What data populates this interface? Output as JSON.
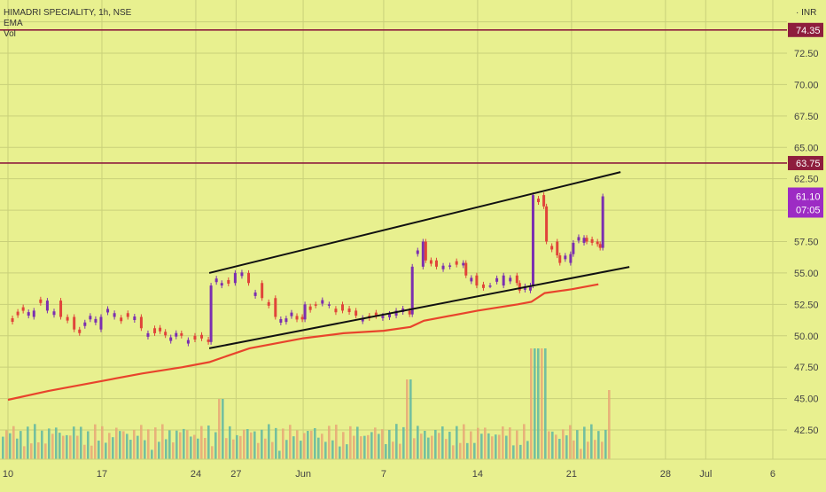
{
  "legend": {
    "symbol": "HIMADRI SPECIALITY, 1h, NSE",
    "ema": "EMA",
    "vol": "Vol"
  },
  "currency": "INR",
  "colors": {
    "background": "#e8f08f",
    "grid": "#c9d07a",
    "up": "#7b2fb0",
    "down": "#e0443a",
    "ema": "#e8442c",
    "hline": "#8e1d3d",
    "channel": "#111111",
    "vol_up": "#5fb7a2",
    "vol_down": "#e8a777",
    "last_price_bg": "#9d2bc4"
  },
  "chart_data": {
    "type": "candlestick",
    "y_axis": {
      "ylim": [
        40.0,
        76.0
      ],
      "tick_labels": [
        "72.50",
        "70.00",
        "67.50",
        "65.00",
        "62.50",
        "57.50",
        "55.00",
        "52.50",
        "50.00",
        "47.50",
        "45.00",
        "42.50"
      ]
    },
    "x_axis": {
      "tick_labels": [
        "10",
        "17",
        "24",
        "27",
        "Jun",
        "7",
        "14",
        "21",
        "28",
        "Jul",
        "6"
      ]
    },
    "horizontal_lines": [
      {
        "value": 74.35,
        "label": "74.35"
      },
      {
        "value": 63.75,
        "label": "63.75"
      }
    ],
    "last_price": {
      "value": 61.1,
      "label": "61.10",
      "countdown": "07:05"
    },
    "channel": {
      "upper": [
        {
          "x": "May 25",
          "y": 55.0
        },
        {
          "x": "Jun 23",
          "y": 62.6
        }
      ],
      "lower": [
        {
          "x": "May 25",
          "y": 49.0
        },
        {
          "x": "Jun 23",
          "y": 55.0
        }
      ]
    },
    "price_path": [
      {
        "x": "May 10",
        "y": 51.5
      },
      {
        "x": "May 12",
        "y": 52.0
      },
      {
        "x": "May 13",
        "y": 52.8
      },
      {
        "x": "May 14",
        "y": 51.5
      },
      {
        "x": "May 15",
        "y": 50.5
      },
      {
        "x": "May 17",
        "y": 51.5
      },
      {
        "x": "May 18",
        "y": 51.8
      },
      {
        "x": "May 19",
        "y": 51.5
      },
      {
        "x": "May 20",
        "y": 50.6
      },
      {
        "x": "May 21",
        "y": 50.2
      },
      {
        "x": "May 23",
        "y": 50.0
      },
      {
        "x": "May 24",
        "y": 49.7
      },
      {
        "x": "May 25",
        "y": 49.5
      },
      {
        "x": "May 25",
        "y": 54.0
      },
      {
        "x": "May 26",
        "y": 54.2
      },
      {
        "x": "May 27",
        "y": 55.0
      },
      {
        "x": "May 28",
        "y": 54.2
      },
      {
        "x": "May 29",
        "y": 53.0
      },
      {
        "x": "May 30",
        "y": 51.5
      },
      {
        "x": "Jun 1",
        "y": 51.3
      },
      {
        "x": "Jun 1",
        "y": 52.5
      },
      {
        "x": "Jun 2",
        "y": 52.4
      },
      {
        "x": "Jun 3",
        "y": 52.5
      },
      {
        "x": "Jun 4",
        "y": 52.0
      },
      {
        "x": "Jun 5",
        "y": 51.6
      },
      {
        "x": "Jun 6",
        "y": 51.4
      },
      {
        "x": "Jun 7",
        "y": 51.6
      },
      {
        "x": "Jun 8",
        "y": 52.0
      },
      {
        "x": "Jun 9",
        "y": 51.7
      },
      {
        "x": "Jun 9",
        "y": 55.5
      },
      {
        "x": "Jun 10",
        "y": 57.5
      },
      {
        "x": "Jun 10",
        "y": 56.0
      },
      {
        "x": "Jun 11",
        "y": 55.5
      },
      {
        "x": "Jun 12",
        "y": 55.6
      },
      {
        "x": "Jun 13",
        "y": 55.8
      },
      {
        "x": "Jun 13",
        "y": 54.8
      },
      {
        "x": "Jun 14",
        "y": 54.0
      },
      {
        "x": "Jun 15",
        "y": 54.0
      },
      {
        "x": "Jun 16",
        "y": 54.8
      },
      {
        "x": "Jun 17",
        "y": 54.2
      },
      {
        "x": "Jun 17",
        "y": 53.6
      },
      {
        "x": "Jun 18",
        "y": 54.0
      },
      {
        "x": "Jun 18",
        "y": 61.2
      },
      {
        "x": "Jun 19",
        "y": 60.3
      },
      {
        "x": "Jun 19",
        "y": 57.5
      },
      {
        "x": "Jun 20",
        "y": 56.4
      },
      {
        "x": "Jun 20",
        "y": 55.8
      },
      {
        "x": "Jun 21",
        "y": 56.5
      },
      {
        "x": "Jun 21",
        "y": 57.4
      },
      {
        "x": "Jun 22",
        "y": 57.8
      },
      {
        "x": "Jun 22",
        "y": 57.5
      },
      {
        "x": "Jun 23",
        "y": 57.3
      },
      {
        "x": "Jun 23",
        "y": 57.0
      },
      {
        "x": "Jun 23",
        "y": 61.1
      }
    ],
    "ema_path": [
      {
        "x": "May 10",
        "y": 44.9
      },
      {
        "x": "May 13",
        "y": 45.6
      },
      {
        "x": "May 17",
        "y": 46.4
      },
      {
        "x": "May 20",
        "y": 47.0
      },
      {
        "x": "May 23",
        "y": 47.5
      },
      {
        "x": "May 25",
        "y": 47.9
      },
      {
        "x": "May 28",
        "y": 49.0
      },
      {
        "x": "Jun 1",
        "y": 49.8
      },
      {
        "x": "Jun 4",
        "y": 50.2
      },
      {
        "x": "Jun 7",
        "y": 50.4
      },
      {
        "x": "Jun 9",
        "y": 50.7
      },
      {
        "x": "Jun 10",
        "y": 51.2
      },
      {
        "x": "Jun 14",
        "y": 52.0
      },
      {
        "x": "Jun 17",
        "y": 52.5
      },
      {
        "x": "Jun 18",
        "y": 52.7
      },
      {
        "x": "Jun 19",
        "y": 53.4
      },
      {
        "x": "Jun 21",
        "y": 53.7
      },
      {
        "x": "Jun 23",
        "y": 54.1
      }
    ]
  }
}
